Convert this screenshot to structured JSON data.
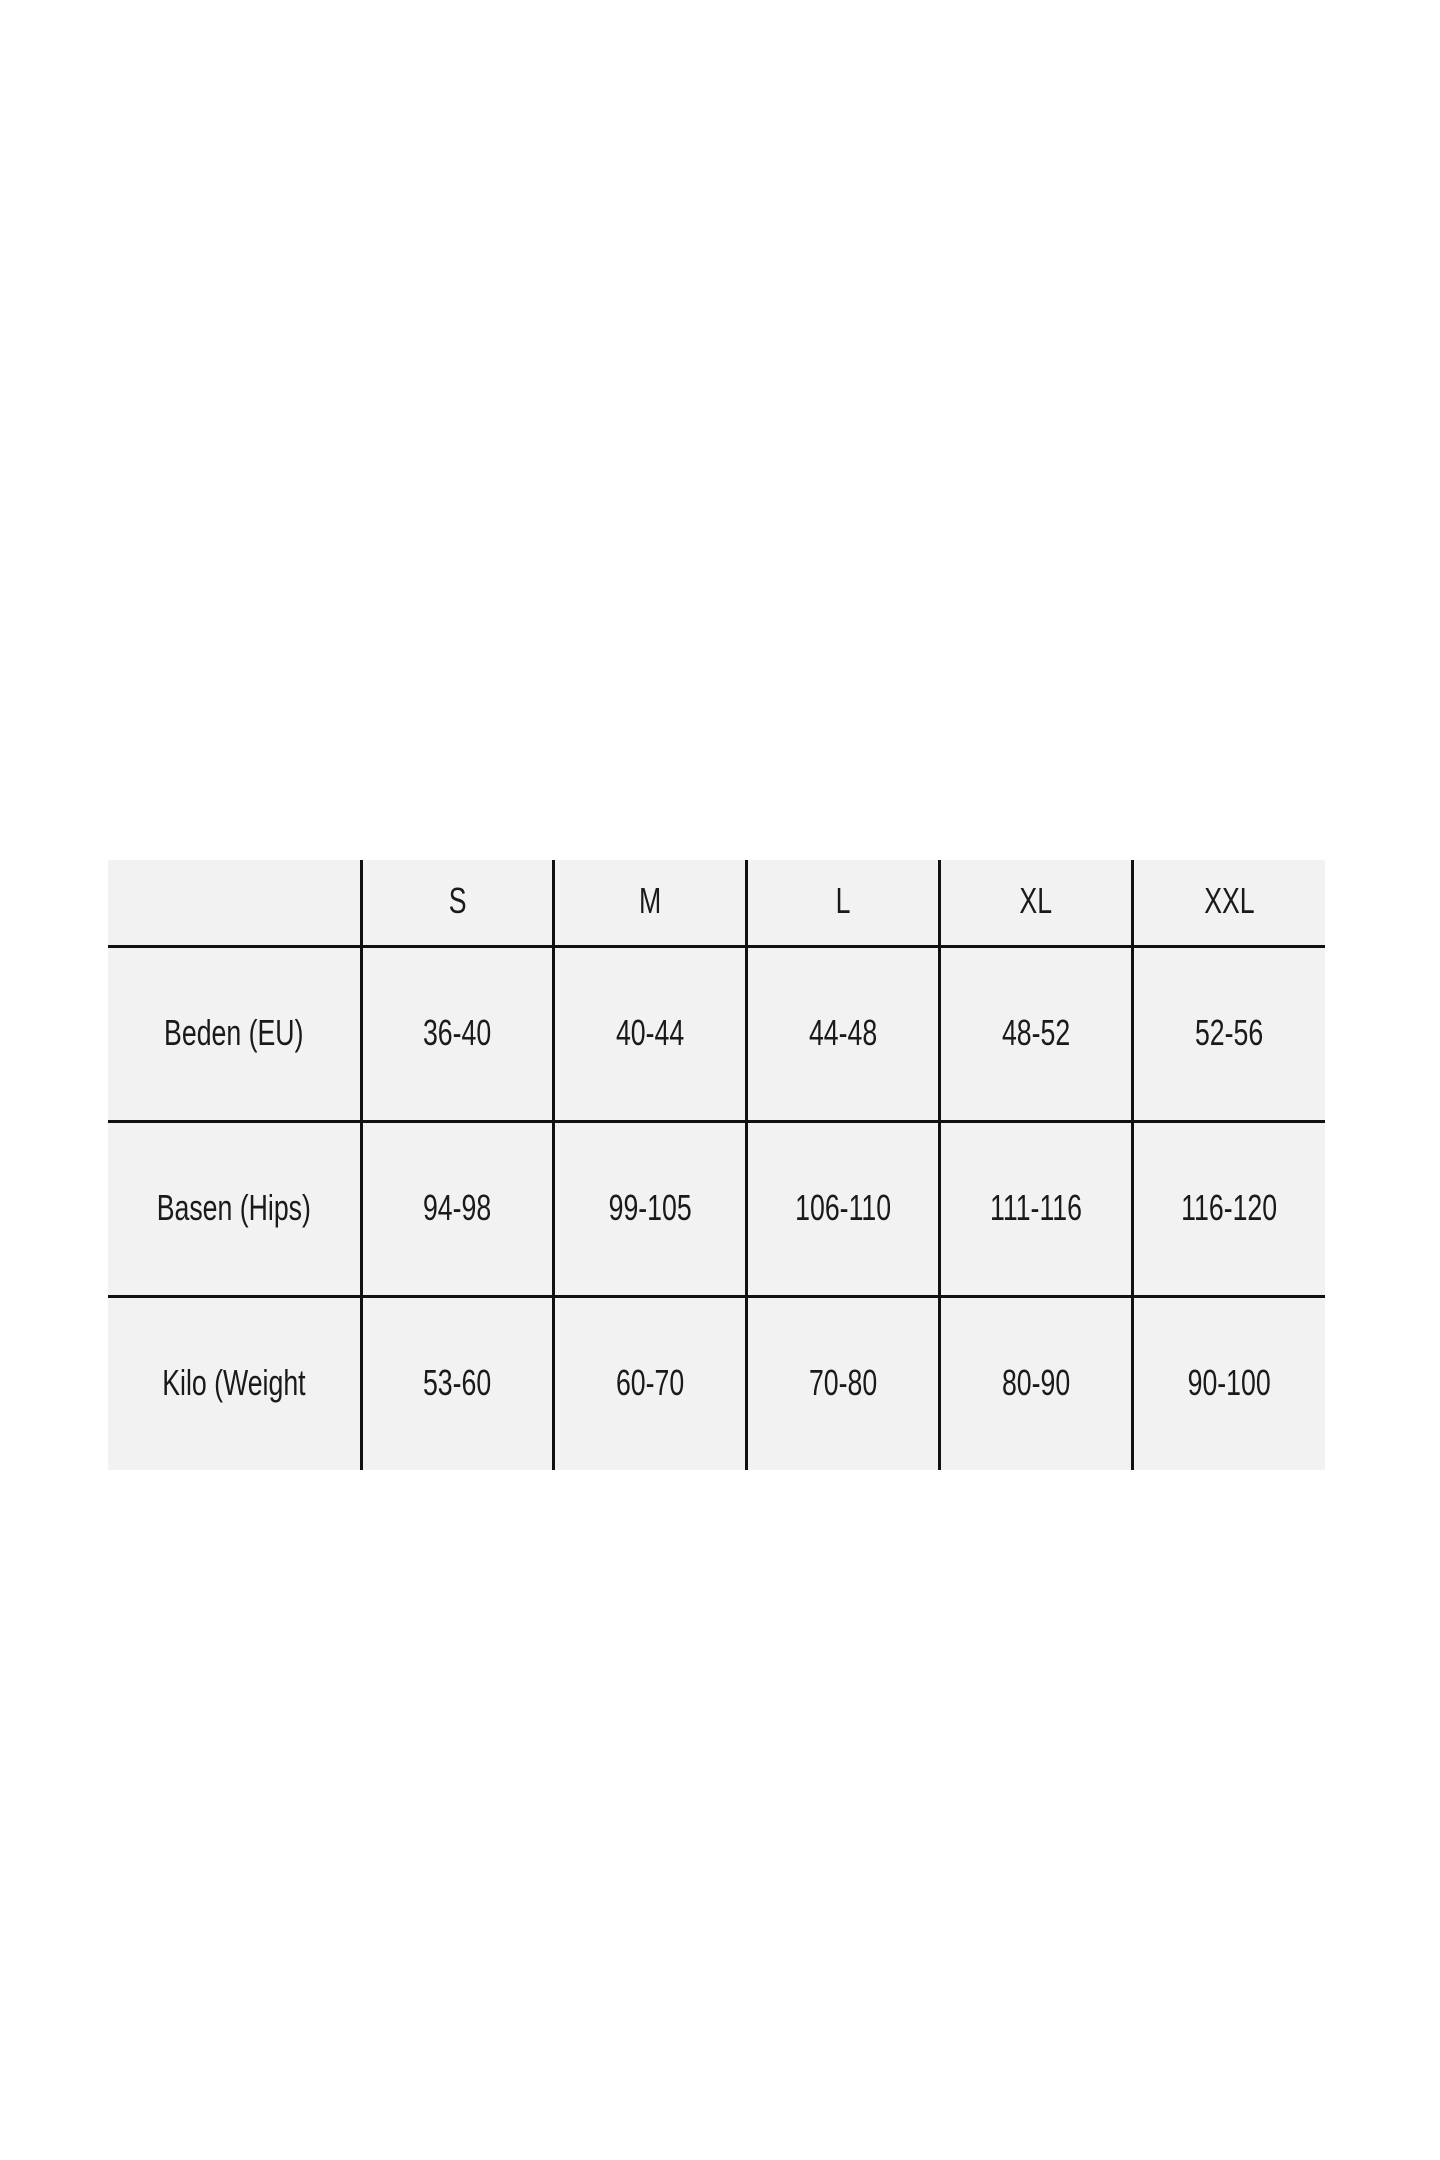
{
  "table": {
    "header": [
      "",
      "S",
      "M",
      "L",
      "XL",
      "XXL"
    ],
    "rows": [
      {
        "label": "Beden (EU)",
        "values": [
          "36-40",
          "40-44",
          "44-48",
          "48-52",
          "52-56"
        ]
      },
      {
        "label": "Basen (Hips)",
        "values": [
          "94-98",
          "99-105",
          "106-110",
          "111-116",
          "116-120"
        ]
      },
      {
        "label": "Kilo (Weight",
        "values": [
          "53-60",
          "60-70",
          "70-80",
          "80-90",
          "90-100"
        ]
      }
    ]
  },
  "colors": {
    "cell_background": "#f2f2f2",
    "grid_line": "#111111",
    "page_background": "#ffffff"
  }
}
